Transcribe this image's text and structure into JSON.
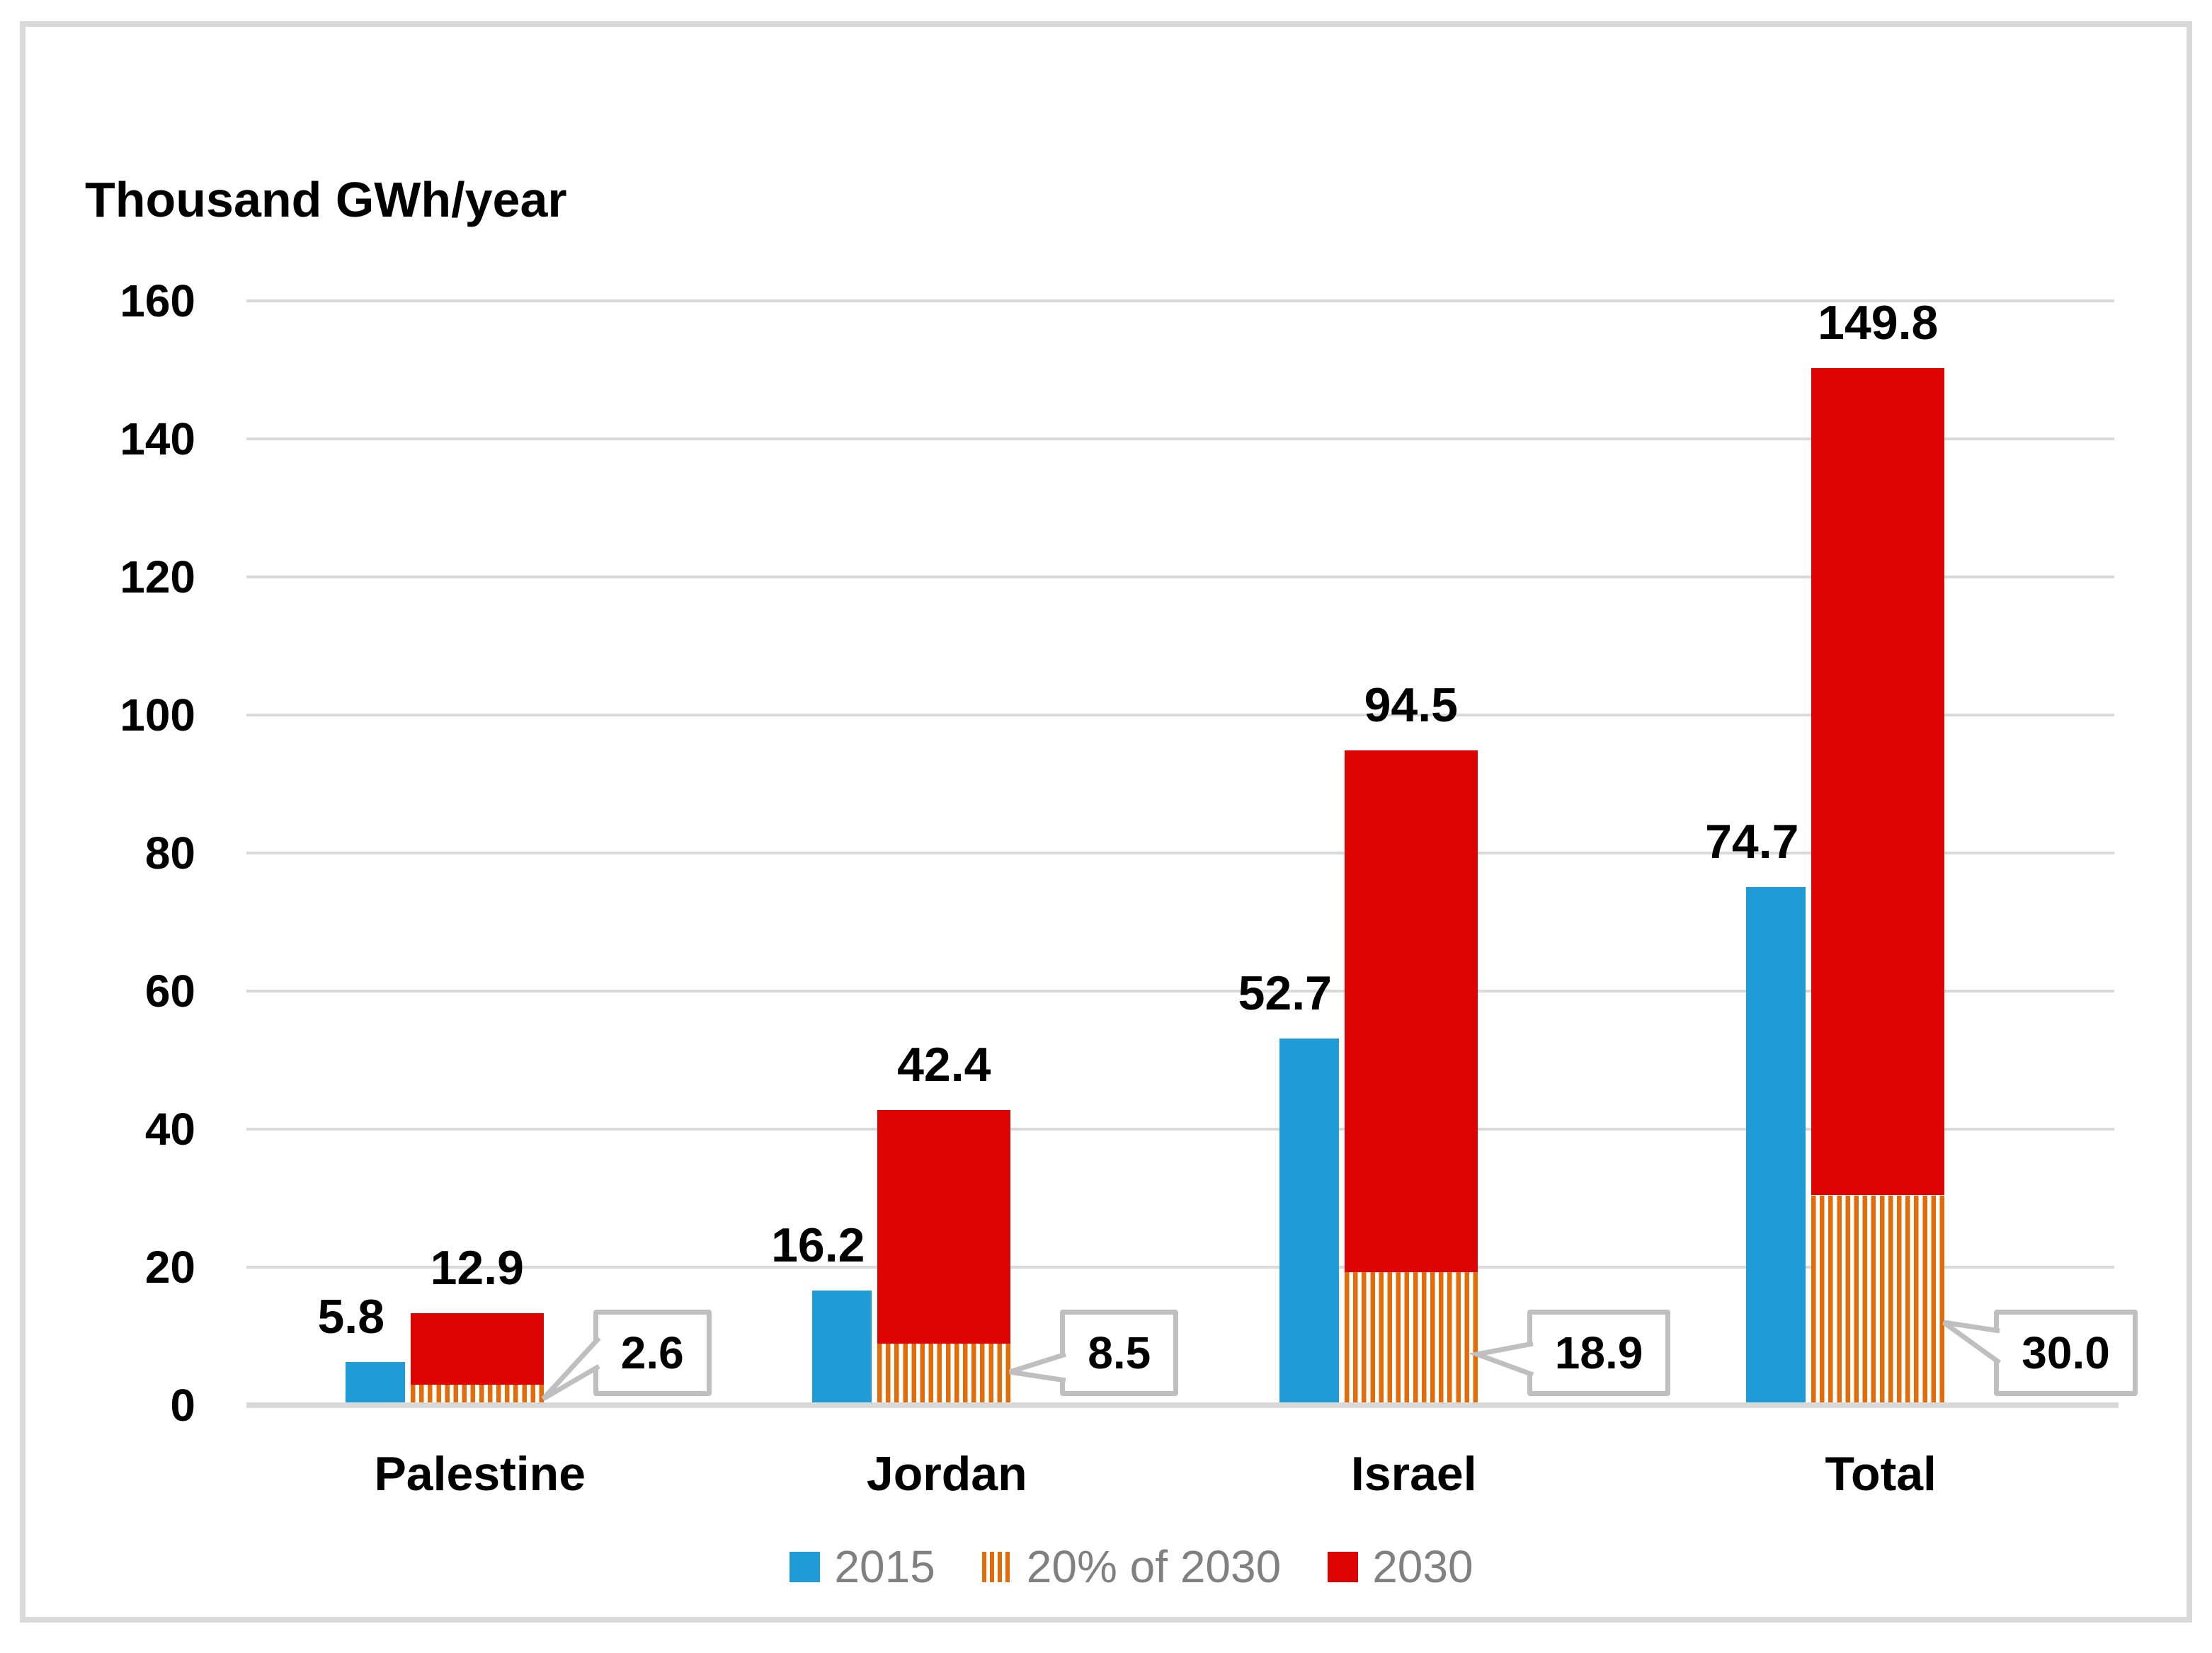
{
  "chart_data": {
    "type": "bar",
    "title": "Thousand GWh/year",
    "categories": [
      "Palestine",
      "Jordan",
      "Israel",
      "Total"
    ],
    "series": [
      {
        "name": "2015",
        "color": "#1F9BD8",
        "pattern": "solid",
        "values": [
          5.8,
          16.2,
          52.7,
          74.7
        ],
        "labels": [
          "5.8",
          "16.2",
          "52.7",
          "74.7"
        ]
      },
      {
        "name": "20% of 2030",
        "color": "#E36C09",
        "pattern": "vertical-stripes",
        "values": [
          2.6,
          8.5,
          18.9,
          30.0
        ],
        "labels": [
          "2.6",
          "8.5",
          "18.9",
          "30.0"
        ],
        "rendering_note": "bottom striped segment of the 2030 bar; values shown in bordered callout boxes with pointers"
      },
      {
        "name": "2030",
        "color": "#DF0404",
        "pattern": "solid",
        "values": [
          12.9,
          42.4,
          94.5,
          149.8
        ],
        "labels": [
          "12.9",
          "42.4",
          "94.5",
          "149.8"
        ]
      }
    ],
    "y_axis": {
      "min": 0,
      "max": 160,
      "step": 20,
      "tick_labels": [
        "160",
        "140",
        "120",
        "100",
        "80",
        "60",
        "40",
        "20",
        "0"
      ]
    },
    "grid": true,
    "legend_position": "bottom",
    "colors": {
      "gridline": "#D9D9D9",
      "frame_border": "#D9D9D9",
      "legend_text": "#808080",
      "callout_border": "#BFBFBF",
      "label_text": "#000000",
      "background": "#FFFFFF"
    }
  }
}
